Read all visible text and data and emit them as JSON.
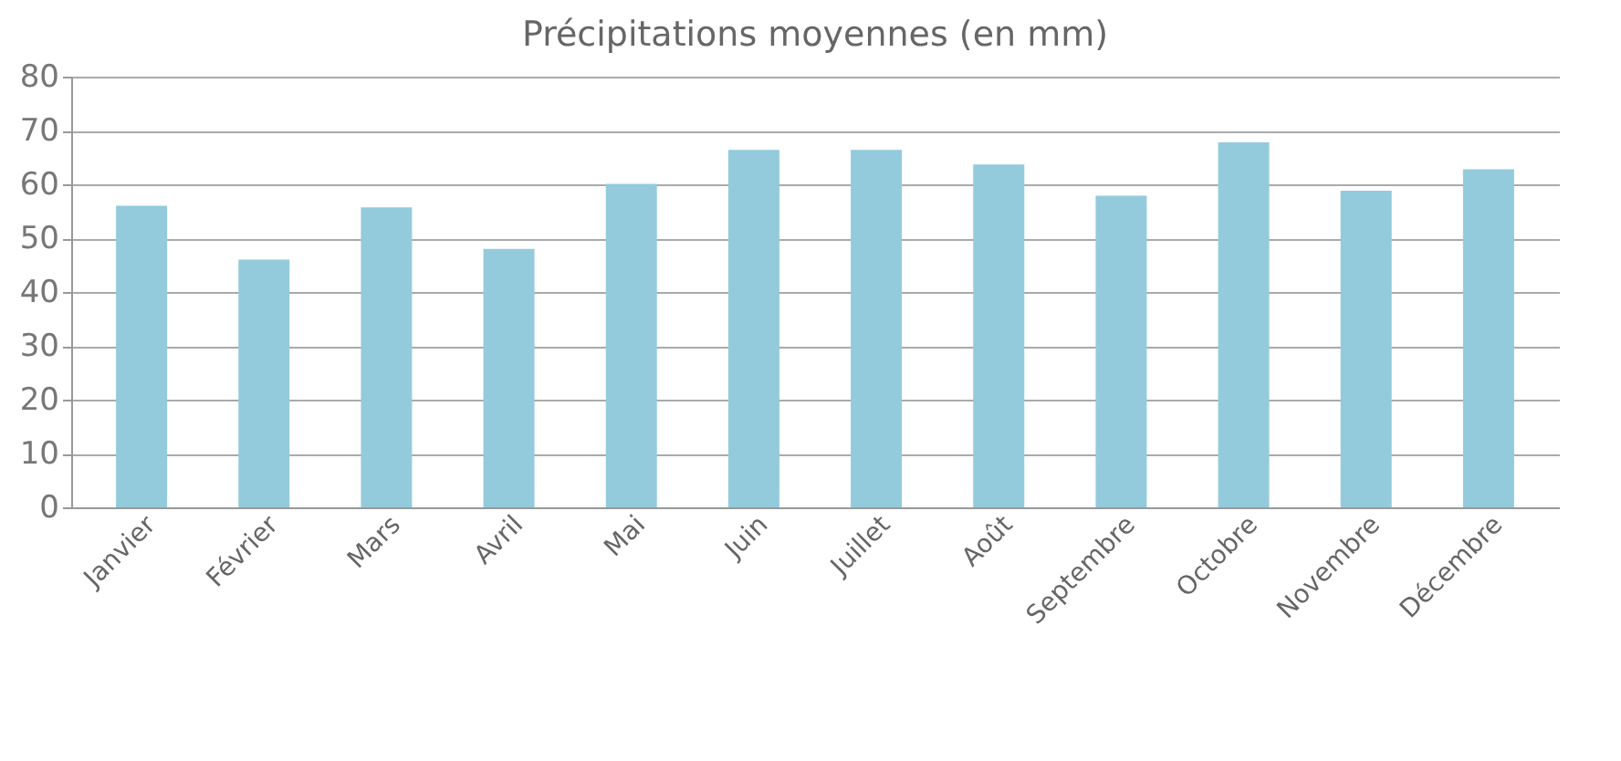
{
  "chart_data": {
    "type": "bar",
    "title": "Précipitations moyennes (en mm)",
    "categories": [
      "Janvier",
      "Février",
      "Mars",
      "Avril",
      "Mai",
      "Juin",
      "Juillet",
      "Août",
      "Septembre",
      "Octobre",
      "Novembre",
      "Décembre"
    ],
    "values": [
      56,
      46,
      55.7,
      48,
      60.1,
      66.4,
      66.4,
      63.7,
      57.9,
      67.8,
      58.8,
      62.8
    ],
    "color": "#93cbdc",
    "ylim": [
      0,
      80
    ],
    "yticks": [
      0,
      10,
      20,
      30,
      40,
      50,
      60,
      70,
      80
    ],
    "grid": "y"
  }
}
